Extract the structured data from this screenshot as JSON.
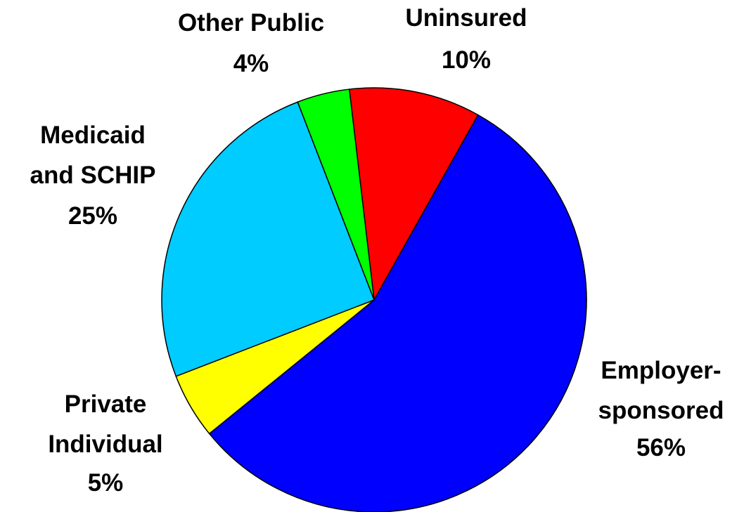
{
  "chart_data": {
    "type": "pie",
    "categories": [
      "Uninsured",
      "Employer-\nsponsored",
      "Private\nIndividual",
      "Medicaid\nand SCHIP",
      "Other Public"
    ],
    "values": [
      10,
      56,
      5,
      25,
      4
    ],
    "value_labels": [
      "10%",
      "56%",
      "5%",
      "25%",
      "4%"
    ],
    "colors": [
      "#ff0000",
      "#0000ff",
      "#ffff00",
      "#00ccff",
      "#00ff00"
    ]
  }
}
